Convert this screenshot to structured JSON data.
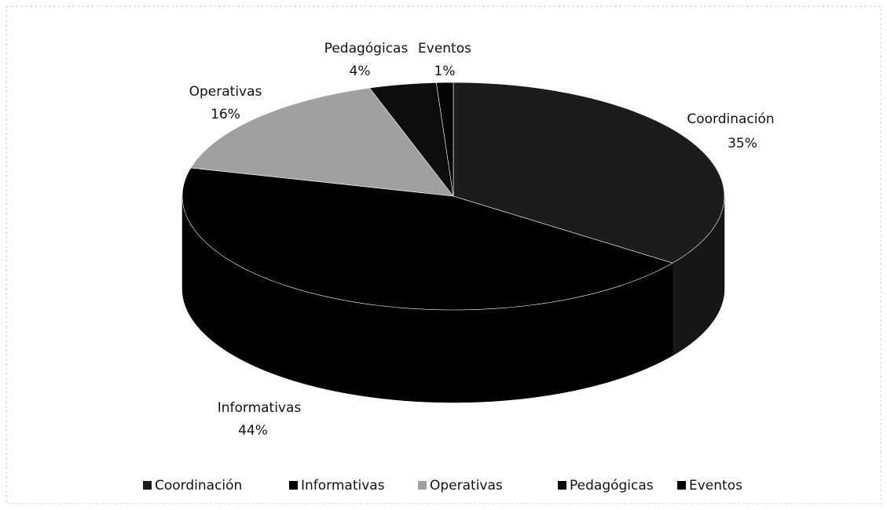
{
  "chart_data": {
    "type": "pie",
    "categories": [
      "Coordinación",
      "Informativas",
      "Operativas",
      "Pedagógicas",
      "Eventos"
    ],
    "values": [
      35,
      44,
      16,
      4,
      1
    ],
    "value_labels": [
      "35%",
      "44%",
      "16%",
      "4%",
      "1%"
    ],
    "colors": [
      "#1c1c1c",
      "#000000",
      "#a0a0a0",
      "#0d0d0d",
      "#050505"
    ],
    "legend": "bottom"
  }
}
